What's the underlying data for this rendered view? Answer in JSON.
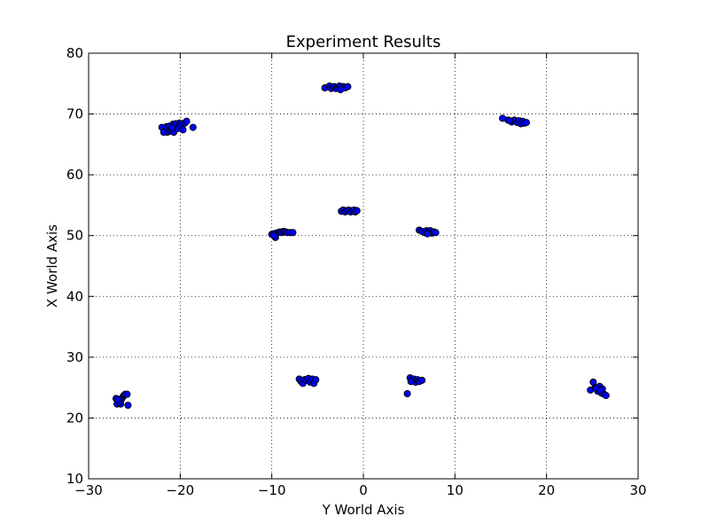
{
  "chart_data": {
    "type": "scatter",
    "title": "Experiment Results",
    "xlabel": "Y World Axis",
    "ylabel": "X World Axis",
    "xlim": [
      -30,
      30
    ],
    "ylim": [
      10,
      80
    ],
    "xticks": [
      -30,
      -20,
      -10,
      0,
      10,
      20,
      30
    ],
    "yticks": [
      10,
      20,
      30,
      40,
      50,
      60,
      70,
      80
    ],
    "xtick_labels": [
      "−30",
      "−20",
      "−10",
      "0",
      "10",
      "20",
      "30"
    ],
    "ytick_labels": [
      "10",
      "20",
      "30",
      "40",
      "50",
      "60",
      "70",
      "80"
    ],
    "grid": true,
    "grid_style": "dotted",
    "marker_color": "#0000ff",
    "marker_edge_color": "#000000",
    "series": [
      {
        "points": [
          [
            -27.0,
            23.2
          ],
          [
            -26.9,
            22.3
          ],
          [
            -26.6,
            22.8
          ],
          [
            -26.5,
            22.3
          ],
          [
            -26.4,
            23.1
          ],
          [
            -26.3,
            23.4
          ],
          [
            -26.2,
            23.6
          ],
          [
            -26.1,
            23.8
          ],
          [
            -26.0,
            23.9
          ],
          [
            -25.8,
            23.9
          ],
          [
            -25.7,
            22.1
          ],
          [
            -26.7,
            22.6
          ],
          [
            -26.8,
            23.0
          ],
          [
            -22.0,
            67.8
          ],
          [
            -21.6,
            67.5
          ],
          [
            -21.5,
            67.9
          ],
          [
            -21.4,
            67.0
          ],
          [
            -21.2,
            68.0
          ],
          [
            -21.0,
            67.2
          ],
          [
            -20.8,
            68.3
          ],
          [
            -20.7,
            67.0
          ],
          [
            -20.5,
            68.4
          ],
          [
            -20.3,
            67.6
          ],
          [
            -20.1,
            68.5
          ],
          [
            -20.0,
            68.0
          ],
          [
            -19.8,
            68.4
          ],
          [
            -19.7,
            67.4
          ],
          [
            -19.5,
            68.5
          ],
          [
            -19.3,
            68.8
          ],
          [
            -18.6,
            67.8
          ],
          [
            -21.8,
            67.0
          ],
          [
            -20.9,
            67.8
          ],
          [
            -10.0,
            50.2
          ],
          [
            -9.8,
            50.3
          ],
          [
            -9.6,
            49.7
          ],
          [
            -9.5,
            50.4
          ],
          [
            -9.3,
            50.5
          ],
          [
            -9.1,
            50.6
          ],
          [
            -8.9,
            50.5
          ],
          [
            -8.7,
            50.7
          ],
          [
            -8.5,
            50.6
          ],
          [
            -8.3,
            50.5
          ],
          [
            -8.0,
            50.5
          ],
          [
            -7.7,
            50.5
          ],
          [
            -9.7,
            50.0
          ],
          [
            -7.0,
            26.4
          ],
          [
            -6.8,
            26.0
          ],
          [
            -6.6,
            25.7
          ],
          [
            -6.4,
            26.3
          ],
          [
            -6.2,
            26.2
          ],
          [
            -6.0,
            26.5
          ],
          [
            -5.8,
            25.9
          ],
          [
            -5.6,
            26.4
          ],
          [
            -5.4,
            25.7
          ],
          [
            -5.2,
            26.3
          ],
          [
            -4.2,
            74.3
          ],
          [
            -3.7,
            74.6
          ],
          [
            -3.5,
            74.2
          ],
          [
            -3.2,
            74.5
          ],
          [
            -3.0,
            74.2
          ],
          [
            -2.8,
            74.4
          ],
          [
            -2.6,
            74.6
          ],
          [
            -2.4,
            74.2
          ],
          [
            -2.2,
            74.5
          ],
          [
            -2.0,
            74.3
          ],
          [
            -1.7,
            74.5
          ],
          [
            -2.5,
            74.0
          ],
          [
            -2.4,
            54.0
          ],
          [
            -2.2,
            54.2
          ],
          [
            -2.0,
            53.9
          ],
          [
            -1.8,
            54.1
          ],
          [
            -1.6,
            54.2
          ],
          [
            -1.4,
            53.9
          ],
          [
            -1.2,
            54.1
          ],
          [
            -1.0,
            54.2
          ],
          [
            -0.9,
            53.9
          ],
          [
            -0.7,
            54.1
          ],
          [
            4.8,
            24.0
          ],
          [
            5.1,
            26.6
          ],
          [
            5.3,
            26.2
          ],
          [
            5.5,
            26.4
          ],
          [
            5.7,
            25.9
          ],
          [
            5.9,
            26.3
          ],
          [
            6.1,
            26.0
          ],
          [
            6.4,
            26.2
          ],
          [
            5.2,
            26.0
          ],
          [
            6.1,
            50.9
          ],
          [
            6.4,
            50.7
          ],
          [
            6.7,
            50.5
          ],
          [
            6.9,
            50.8
          ],
          [
            7.1,
            50.6
          ],
          [
            7.3,
            50.8
          ],
          [
            7.5,
            50.4
          ],
          [
            7.7,
            50.6
          ],
          [
            7.9,
            50.5
          ],
          [
            7.0,
            50.3
          ],
          [
            15.2,
            69.3
          ],
          [
            15.8,
            69.0
          ],
          [
            16.2,
            68.7
          ],
          [
            16.5,
            69.0
          ],
          [
            16.8,
            68.6
          ],
          [
            17.0,
            68.9
          ],
          [
            17.2,
            68.4
          ],
          [
            17.4,
            68.8
          ],
          [
            17.6,
            68.5
          ],
          [
            17.8,
            68.6
          ],
          [
            16.0,
            68.9
          ],
          [
            24.8,
            24.6
          ],
          [
            25.1,
            25.9
          ],
          [
            25.3,
            25.0
          ],
          [
            25.6,
            24.4
          ],
          [
            25.8,
            25.2
          ],
          [
            26.0,
            24.1
          ],
          [
            26.1,
            24.8
          ],
          [
            26.3,
            23.9
          ],
          [
            26.5,
            23.7
          ],
          [
            25.4,
            24.9
          ],
          [
            25.9,
            24.6
          ]
        ]
      }
    ]
  }
}
